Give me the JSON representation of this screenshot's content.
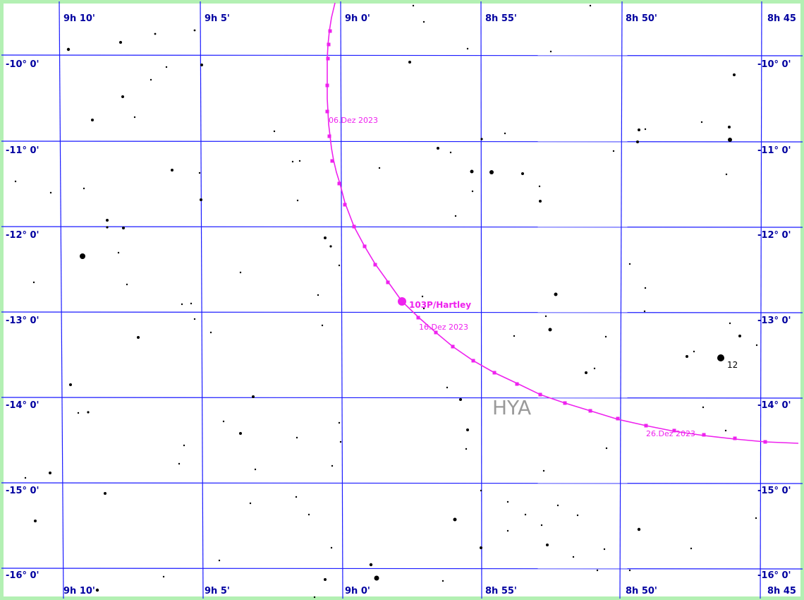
{
  "ra_labels": [
    "9h 10'",
    "9h 5'",
    "9h 0'",
    "8h 55'",
    "8h 50'",
    "8h 45"
  ],
  "dec_labels": [
    "-10° 0'",
    "-11° 0'",
    "-12° 0'",
    "-13° 0'",
    "-14° 0'",
    "-15° 0'",
    "-16° 0'"
  ],
  "comet": {
    "name": "103P/Hartley",
    "dates": [
      "06.Dez 2023",
      "16.Dez 2023",
      "26.Dez 2023"
    ]
  },
  "constellation": "HYA",
  "star_magnitude_label": "12",
  "colors": {
    "grid": "#1a1aff",
    "labels": "#0000a0",
    "comet_track": "#ee22ee",
    "stars": "#000000",
    "constellation": "#9a9a9a",
    "frame": "#b3f0b3"
  }
}
